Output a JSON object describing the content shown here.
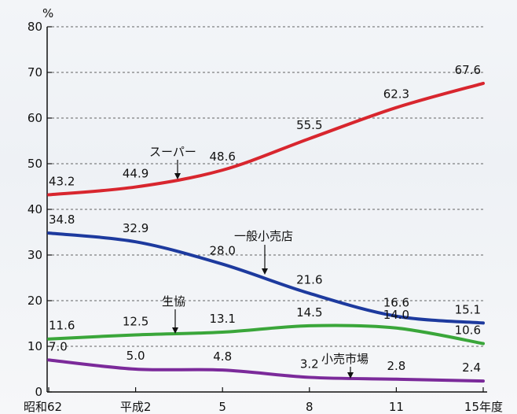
{
  "chart_data": {
    "type": "line",
    "y_unit": "%",
    "categories": [
      "昭和62",
      "平成2",
      "5",
      "8",
      "11",
      "15年度"
    ],
    "ylim": [
      0,
      80
    ],
    "y_ticks": [
      "0",
      "10",
      "20",
      "30",
      "40",
      "50",
      "60",
      "70",
      "80"
    ],
    "grid": true,
    "series": [
      {
        "name": "スーパー",
        "color": "#d8262e",
        "values": [
          43.2,
          44.9,
          48.6,
          55.5,
          62.3,
          67.6
        ],
        "labels": [
          "43.2",
          "44.9",
          "48.6",
          "55.5",
          "62.3",
          "67.6"
        ]
      },
      {
        "name": "一般小売店",
        "color": "#1d3a9e",
        "values": [
          34.8,
          32.9,
          28.0,
          21.6,
          16.6,
          15.1
        ],
        "labels": [
          "34.8",
          "32.9",
          "28.0",
          "21.6",
          "16.6",
          "15.1"
        ]
      },
      {
        "name": "生協",
        "color": "#3aa63a",
        "values": [
          11.6,
          12.5,
          13.1,
          14.5,
          14.0,
          10.6
        ],
        "labels": [
          "11.6",
          "12.5",
          "13.1",
          "14.5",
          "14.0",
          "10.6"
        ]
      },
      {
        "name": "小売市場",
        "color": "#7b2a9a",
        "values": [
          7.0,
          5.0,
          4.8,
          3.2,
          2.8,
          2.4
        ],
        "labels": [
          "7.0",
          "5.0",
          "4.8",
          "3.2",
          "2.8",
          "2.4"
        ]
      }
    ]
  }
}
